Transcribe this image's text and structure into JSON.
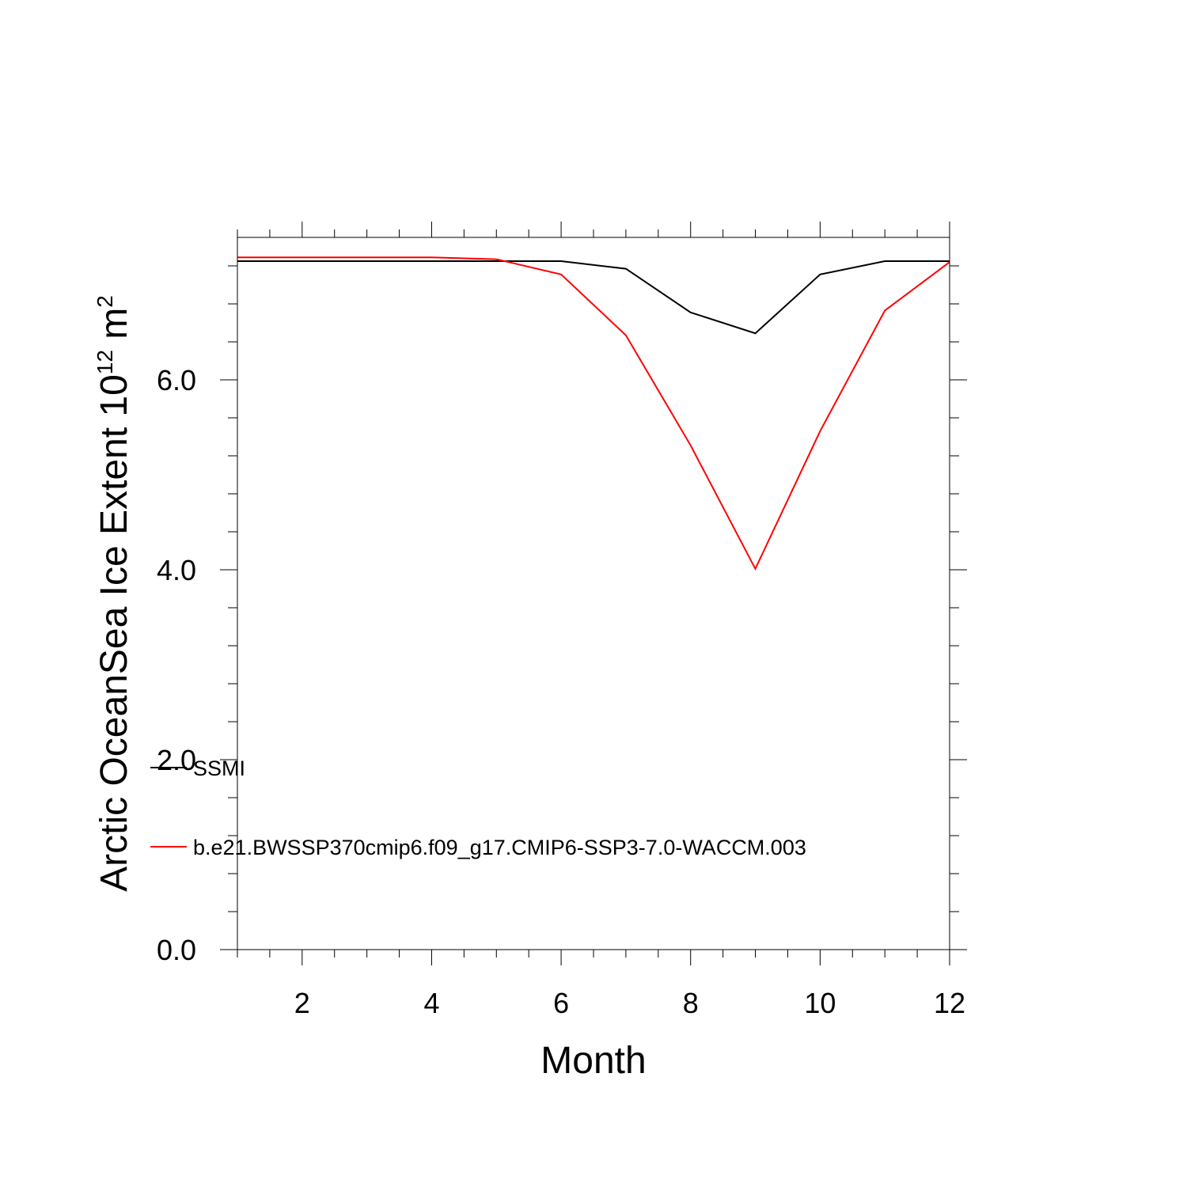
{
  "chart_data": {
    "type": "line",
    "title": "",
    "xlabel": "Month",
    "ylabel_main": "Arctic OceanSea Ice Extent 10",
    "ylabel_exp": "12",
    "ylabel_unit": " m",
    "ylabel_unit_exp": "2",
    "xlim": [
      1,
      12
    ],
    "ylim": [
      0.0,
      7.5
    ],
    "x_ticks": [
      2,
      4,
      6,
      8,
      10,
      12
    ],
    "x_tick_labels": [
      "2",
      "4",
      "6",
      "8",
      "10",
      "12"
    ],
    "y_ticks": [
      0.0,
      2.0,
      4.0,
      6.0
    ],
    "y_tick_labels": [
      "0.0",
      "2.0",
      "4.0",
      "6.0"
    ],
    "grid": false,
    "legend_position": "bottom-left",
    "series": [
      {
        "name": "SSMI",
        "color": "#000000",
        "x": [
          1,
          2,
          3,
          4,
          5,
          6,
          7,
          8,
          9,
          10,
          11,
          12
        ],
        "values": [
          7.25,
          7.25,
          7.25,
          7.25,
          7.25,
          7.25,
          7.17,
          6.71,
          6.49,
          7.11,
          7.25,
          7.25
        ]
      },
      {
        "name": "b.e21.BWSSP370cmip6.f09_g17.CMIP6-SSP3-7.0-WACCM.003",
        "color": "#ff0000",
        "x": [
          1,
          2,
          3,
          4,
          5,
          6,
          7,
          8,
          9,
          10,
          11,
          12
        ],
        "values": [
          7.29,
          7.29,
          7.29,
          7.29,
          7.27,
          7.11,
          6.47,
          5.31,
          4.01,
          5.46,
          6.73,
          7.24
        ]
      }
    ]
  }
}
